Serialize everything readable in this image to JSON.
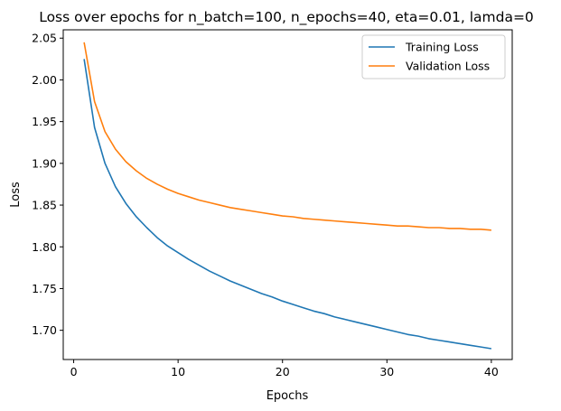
{
  "chart_data": {
    "type": "line",
    "title": "Loss over epochs for n_batch=100, n_epochs=40, eta=0.01, lamda=0",
    "xlabel": "Epochs",
    "ylabel": "Loss",
    "xlim": [
      -1,
      42
    ],
    "ylim": [
      1.665,
      2.06
    ],
    "xticks": [
      0,
      10,
      20,
      30,
      40
    ],
    "yticks": [
      1.7,
      1.75,
      1.8,
      1.85,
      1.9,
      1.95,
      2.0,
      2.05
    ],
    "xtick_labels": [
      "0",
      "10",
      "20",
      "30",
      "40"
    ],
    "ytick_labels": [
      "1.70",
      "1.75",
      "1.80",
      "1.85",
      "1.90",
      "1.95",
      "2.00",
      "2.05"
    ],
    "grid": false,
    "legend_position": "top-right",
    "x": [
      1,
      2,
      3,
      4,
      5,
      6,
      7,
      8,
      9,
      10,
      11,
      12,
      13,
      14,
      15,
      16,
      17,
      18,
      19,
      20,
      21,
      22,
      23,
      24,
      25,
      26,
      27,
      28,
      29,
      30,
      31,
      32,
      33,
      34,
      35,
      36,
      37,
      38,
      39,
      40
    ],
    "series": [
      {
        "name": "Training Loss",
        "color": "#1f77b4",
        "values": [
          2.025,
          1.943,
          1.9,
          1.872,
          1.852,
          1.836,
          1.823,
          1.811,
          1.801,
          1.793,
          1.785,
          1.778,
          1.771,
          1.765,
          1.759,
          1.754,
          1.749,
          1.744,
          1.74,
          1.735,
          1.731,
          1.727,
          1.723,
          1.72,
          1.716,
          1.713,
          1.71,
          1.707,
          1.704,
          1.701,
          1.698,
          1.695,
          1.693,
          1.69,
          1.688,
          1.686,
          1.684,
          1.682,
          1.68,
          1.678
        ]
      },
      {
        "name": "Validation Loss",
        "color": "#ff7f0e",
        "values": [
          2.045,
          1.974,
          1.938,
          1.917,
          1.902,
          1.891,
          1.882,
          1.875,
          1.869,
          1.864,
          1.86,
          1.856,
          1.853,
          1.85,
          1.847,
          1.845,
          1.843,
          1.841,
          1.839,
          1.837,
          1.836,
          1.834,
          1.833,
          1.832,
          1.831,
          1.83,
          1.829,
          1.828,
          1.827,
          1.826,
          1.825,
          1.825,
          1.824,
          1.823,
          1.823,
          1.822,
          1.822,
          1.821,
          1.821,
          1.82
        ]
      }
    ]
  }
}
